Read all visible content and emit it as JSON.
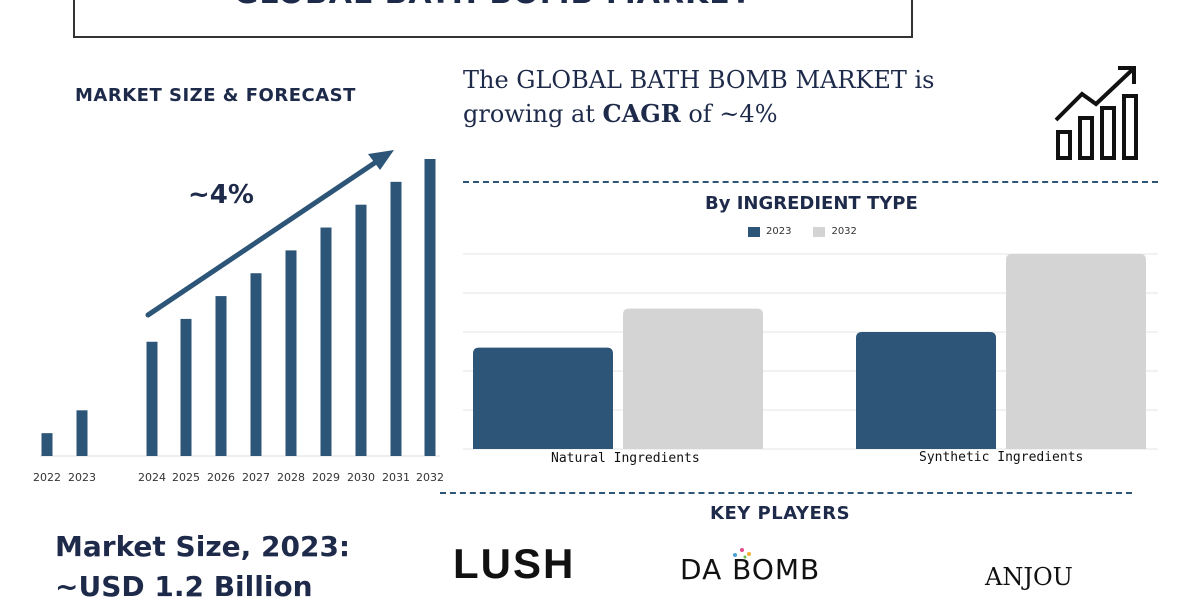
{
  "header": {
    "title": "GLOBAL BATH BOMB MARKET"
  },
  "left_panel": {
    "heading": "MARKET SIZE & FORECAST",
    "cagr_label": "~4%"
  },
  "cagr_statement": {
    "line1": "The GLOBAL BATH BOMB MARKET is",
    "line2_prefix": "growing at ",
    "line2_bold": "CAGR",
    "line2_suffix": " of ~4%"
  },
  "ingredient_panel": {
    "heading": "By INGREDIENT TYPE"
  },
  "key_players": {
    "heading": "KEY PLAYERS",
    "logos": [
      "LUSH",
      "DA BOMB",
      "ANJOU"
    ]
  },
  "market_size": {
    "line1": "Market Size, 2023:",
    "line2": "~USD 1.2 Billion"
  },
  "colors": {
    "navy": "#2c5578",
    "light_gray": "#d4d4d4",
    "text": "#1e2a4a"
  },
  "icons": [
    "bar-growth-arrow-icon"
  ],
  "chart_data": [
    {
      "type": "bar",
      "title": "MARKET SIZE & FORECAST",
      "categories": [
        "2022",
        "2023",
        "2024",
        "2025",
        "2026",
        "2027",
        "2028",
        "2029",
        "2030",
        "2031",
        "2032"
      ],
      "values": [
        1.0,
        2.0,
        5.0,
        6.0,
        7.0,
        8.0,
        9.0,
        10.0,
        11.0,
        12.0,
        13.0
      ],
      "annotation": "~4%",
      "ylim": [
        0,
        13.5
      ],
      "note": "relative bar heights; no y-axis printed"
    },
    {
      "type": "bar",
      "title": "By INGREDIENT TYPE",
      "categories": [
        "Natural Ingredients",
        "Synthetic Ingredients"
      ],
      "series": [
        {
          "name": "2023",
          "values": [
            2.6,
            3.0
          ]
        },
        {
          "name": "2032",
          "values": [
            3.6,
            5.0
          ]
        }
      ],
      "ylim": [
        0,
        5
      ],
      "grid": true,
      "legend": "top-center"
    }
  ]
}
